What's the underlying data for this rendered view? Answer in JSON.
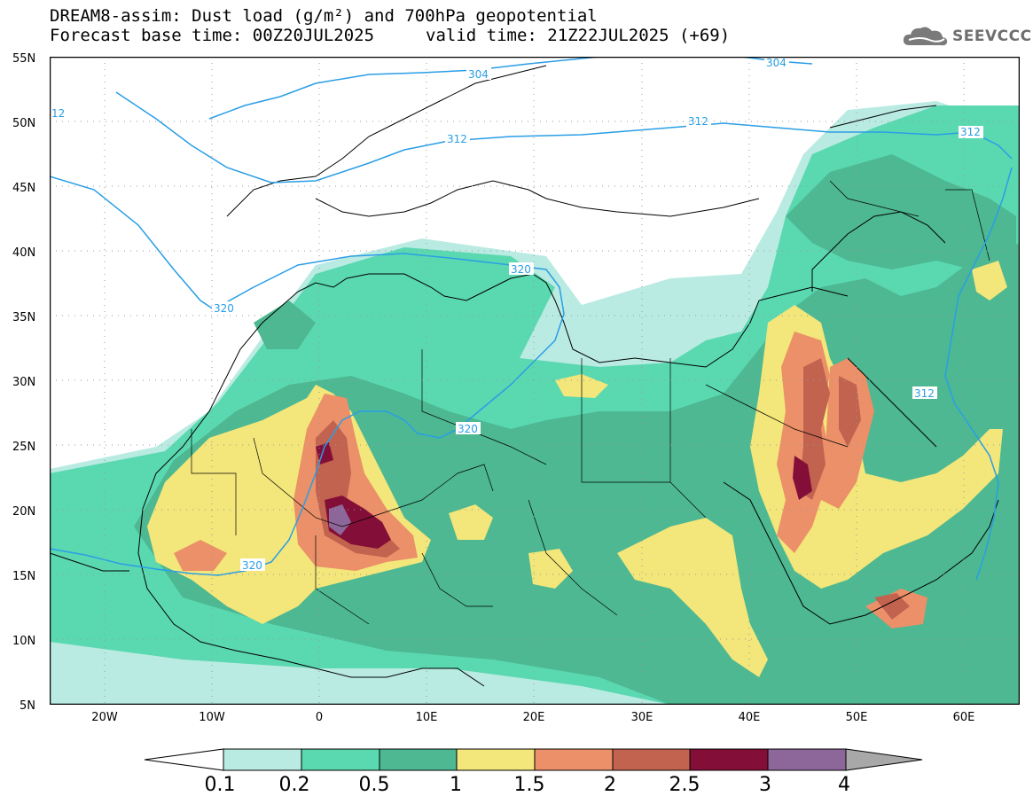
{
  "header": {
    "line1": "DREAM8-assim: Dust load (g/m²) and 700hPa geopotential",
    "line2": "Forecast base time: 00Z20JUL2025",
    "valid": "valid time: 21Z22JUL2025 (+69)"
  },
  "logo": {
    "text": "SEEVCCC",
    "icon": "cloud-logo-icon"
  },
  "axes": {
    "lat_labels": [
      "55N",
      "50N",
      "45N",
      "40N",
      "35N",
      "30N",
      "25N",
      "20N",
      "15N",
      "10N",
      "5N"
    ],
    "lon_labels": [
      "20W",
      "10W",
      "0",
      "10E",
      "20E",
      "30E",
      "40E",
      "50E",
      "60E"
    ],
    "lon_range": [
      -25,
      65
    ],
    "lat_range": [
      5,
      55
    ]
  },
  "contour_labels": [
    "304",
    "304",
    "312",
    "312",
    "312",
    "312",
    "320",
    "320",
    "320",
    "320",
    "12"
  ],
  "colorbar": {
    "labels": [
      "0.1",
      "0.2",
      "0.5",
      "1",
      "1.5",
      "2",
      "2.5",
      "3",
      "4"
    ],
    "colors": [
      "#ffffff",
      "#b9ebe2",
      "#5ad8b0",
      "#4db892",
      "#f3e67a",
      "#eb9068",
      "#c26350",
      "#830f38",
      "#8d6799",
      "#a8a8a8"
    ]
  },
  "colors": {
    "geopotential": "#2a9ee6",
    "coast": "#000000"
  }
}
